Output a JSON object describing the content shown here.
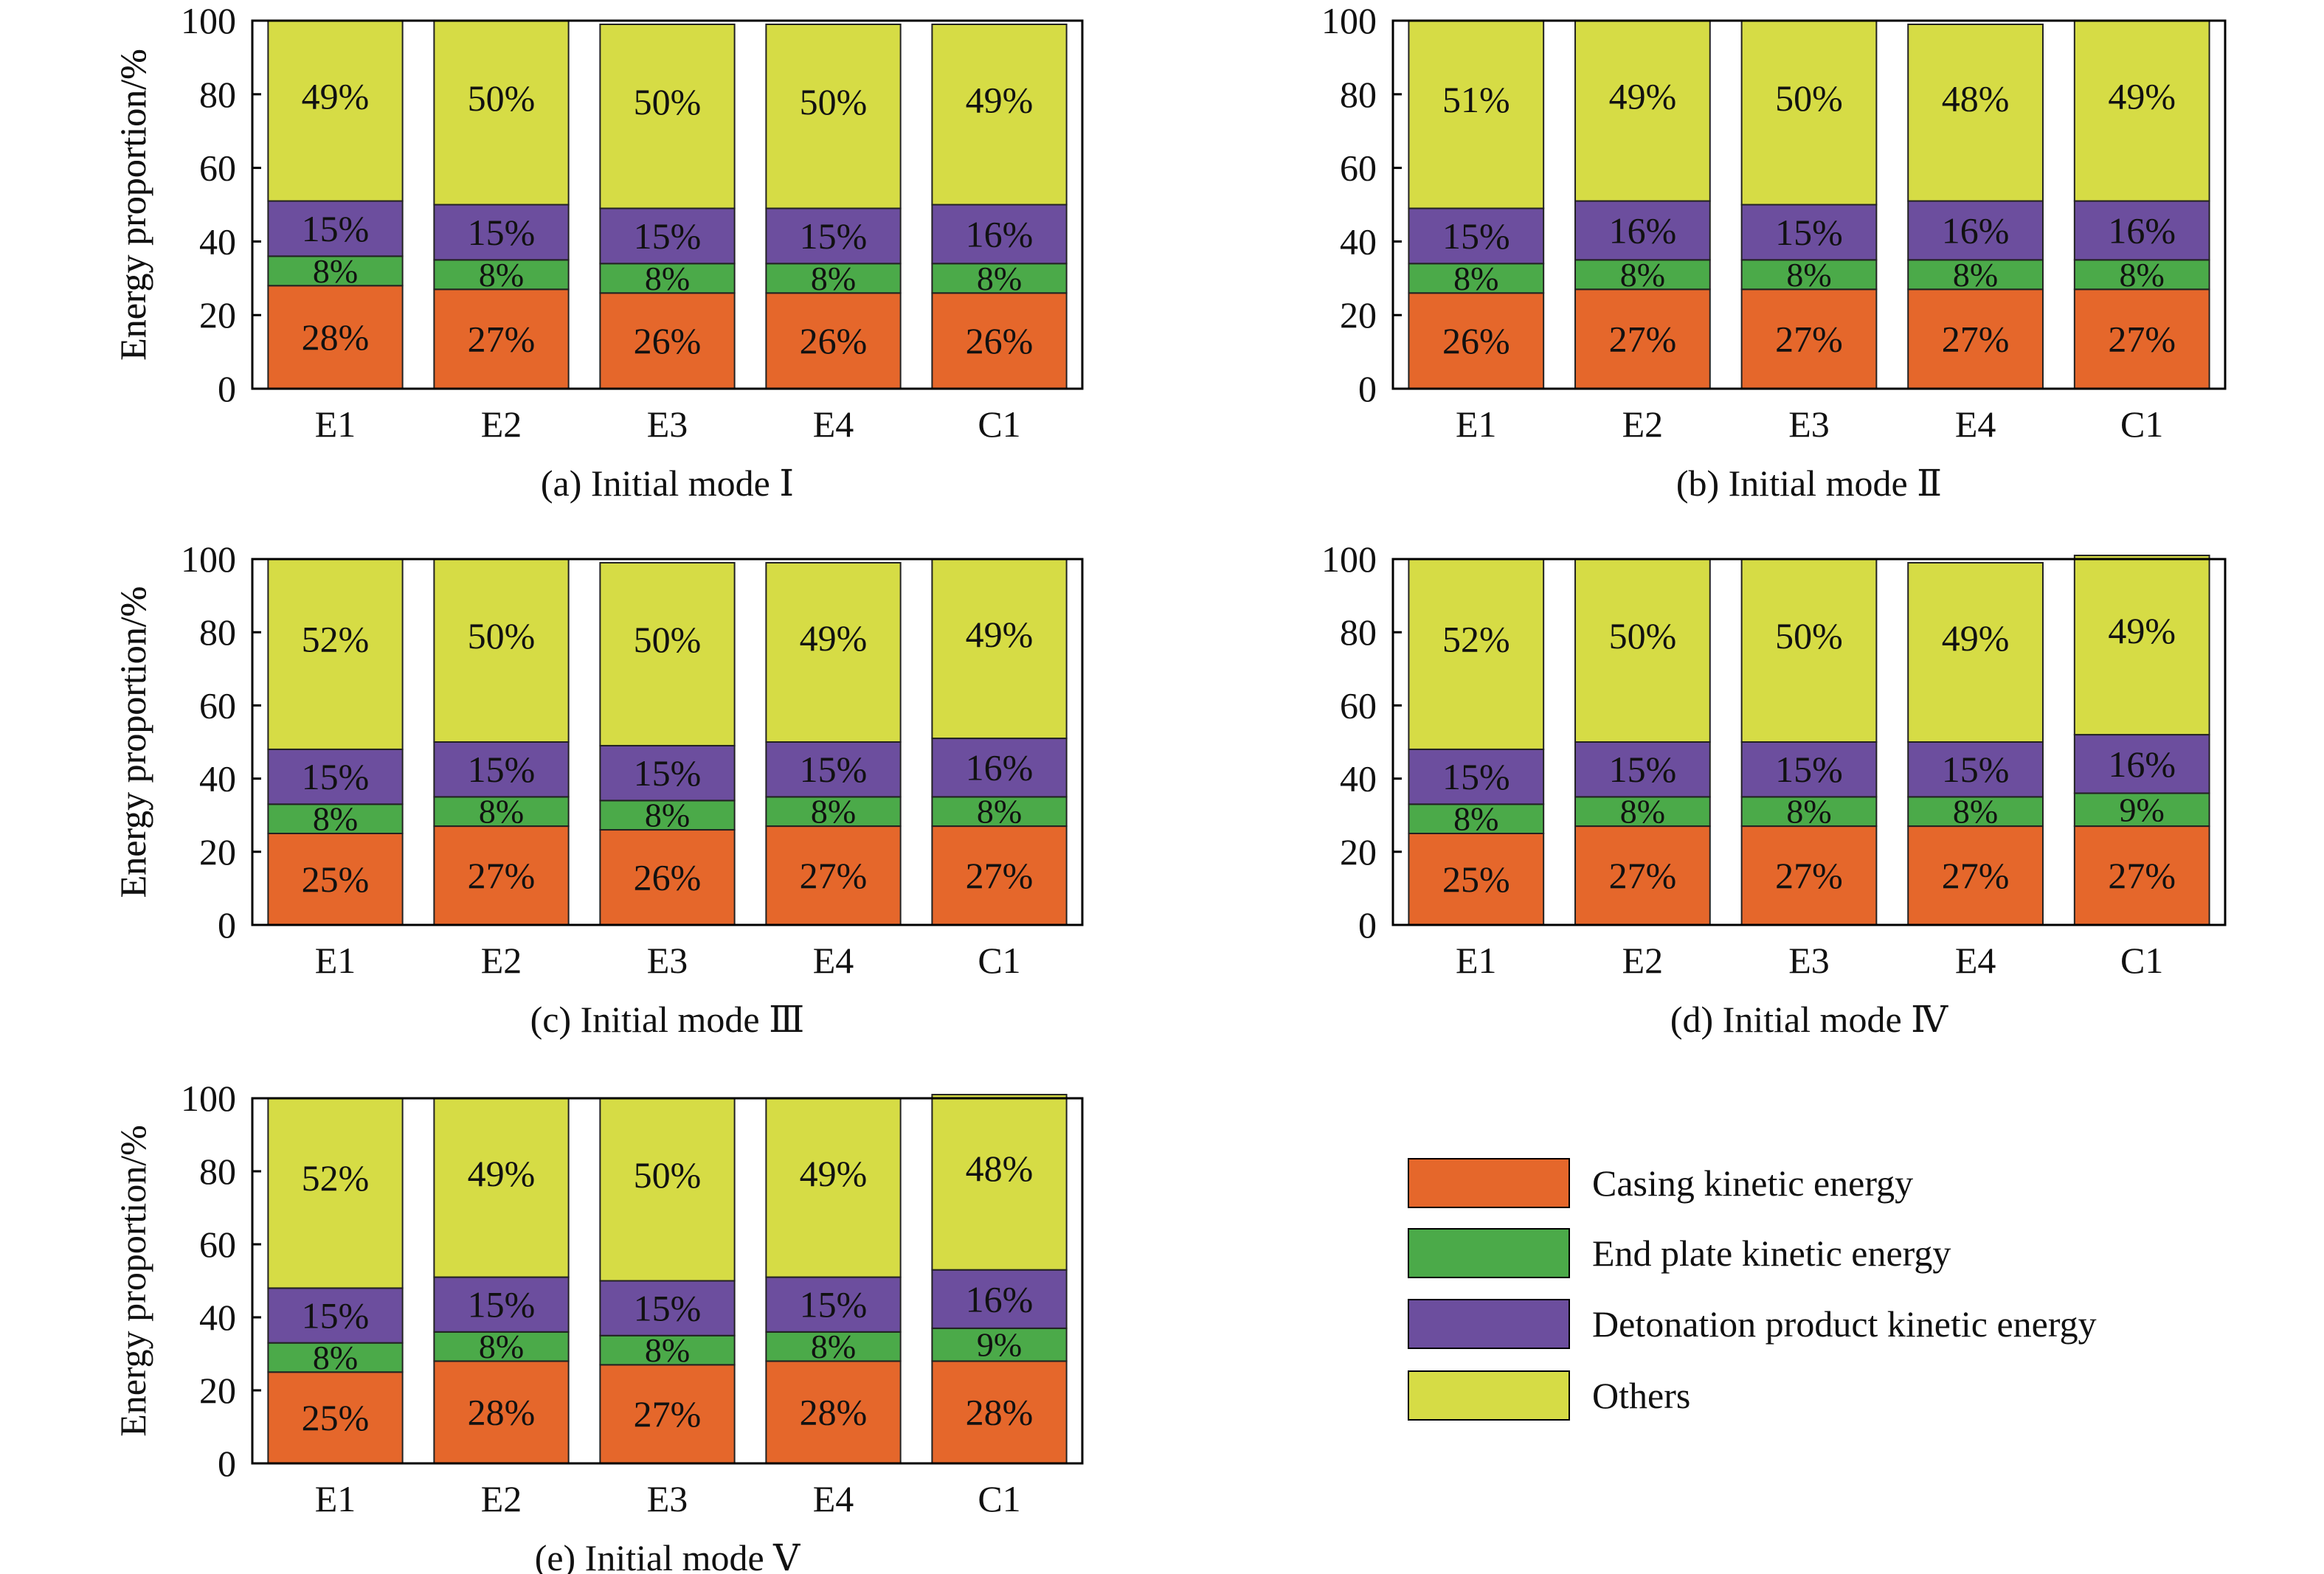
{
  "colors": {
    "casing": "#E5672B",
    "end_plate": "#4BAA49",
    "detonation": "#6C4E9E",
    "others": "#D6DC45"
  },
  "legend": {
    "items": [
      {
        "label": "Casing kinetic energy",
        "color_key": "casing"
      },
      {
        "label": "End plate kinetic energy",
        "color_key": "end_plate"
      },
      {
        "label": "Detonation product kinetic energy",
        "color_key": "detonation"
      },
      {
        "label": "Others",
        "color_key": "others"
      }
    ]
  },
  "chart_data": [
    {
      "type": "bar",
      "stacked": true,
      "caption": "(a) Initial mode Ⅰ",
      "ylabel": "Energy proportion/%",
      "ylim": [
        0,
        100
      ],
      "yticks": [
        "0",
        "20",
        "40",
        "60",
        "80",
        "100"
      ],
      "categories": [
        "E1",
        "E2",
        "E3",
        "E4",
        "C1"
      ],
      "series": [
        {
          "name": "Casing kinetic energy",
          "values": [
            28,
            27,
            26,
            26,
            26
          ],
          "labels": [
            "28%",
            "27%",
            "26%",
            "26%",
            "26%"
          ]
        },
        {
          "name": "End plate kinetic energy",
          "values": [
            8,
            8,
            8,
            8,
            8
          ],
          "labels": [
            "8%",
            "8%",
            "8%",
            "8%",
            "8%"
          ]
        },
        {
          "name": "Detonation product kinetic energy",
          "values": [
            15,
            15,
            15,
            15,
            16
          ],
          "labels": [
            "15%",
            "15%",
            "15%",
            "15%",
            "16%"
          ]
        },
        {
          "name": "Others",
          "values": [
            49,
            50,
            50,
            50,
            49
          ],
          "labels": [
            "49%",
            "50%",
            "50%",
            "50%",
            "49%"
          ]
        }
      ]
    },
    {
      "type": "bar",
      "stacked": true,
      "caption": "(b) Initial mode Ⅱ",
      "ylabel": "Energy proportion/%",
      "ylim": [
        0,
        100
      ],
      "yticks": [
        "0",
        "20",
        "40",
        "60",
        "80",
        "100"
      ],
      "categories": [
        "E1",
        "E2",
        "E3",
        "E4",
        "C1"
      ],
      "series": [
        {
          "name": "Casing kinetic energy",
          "values": [
            26,
            27,
            27,
            27,
            27
          ],
          "labels": [
            "26%",
            "27%",
            "27%",
            "27%",
            "27%"
          ]
        },
        {
          "name": "End plate kinetic energy",
          "values": [
            8,
            8,
            8,
            8,
            8
          ],
          "labels": [
            "8%",
            "8%",
            "8%",
            "8%",
            "8%"
          ]
        },
        {
          "name": "Detonation product kinetic energy",
          "values": [
            15,
            16,
            15,
            16,
            16
          ],
          "labels": [
            "15%",
            "16%",
            "15%",
            "16%",
            "16%"
          ]
        },
        {
          "name": "Others",
          "values": [
            51,
            49,
            50,
            48,
            49
          ],
          "labels": [
            "51%",
            "49%",
            "50%",
            "48%",
            "49%"
          ]
        }
      ]
    },
    {
      "type": "bar",
      "stacked": true,
      "caption": "(c) Initial mode Ⅲ",
      "ylabel": "Energy proportion/%",
      "ylim": [
        0,
        100
      ],
      "yticks": [
        "0",
        "20",
        "40",
        "60",
        "80",
        "100"
      ],
      "categories": [
        "E1",
        "E2",
        "E3",
        "E4",
        "C1"
      ],
      "series": [
        {
          "name": "Casing kinetic energy",
          "values": [
            25,
            27,
            26,
            27,
            27
          ],
          "labels": [
            "25%",
            "27%",
            "26%",
            "27%",
            "27%"
          ]
        },
        {
          "name": "End plate kinetic energy",
          "values": [
            8,
            8,
            8,
            8,
            8
          ],
          "labels": [
            "8%",
            "8%",
            "8%",
            "8%",
            "8%"
          ]
        },
        {
          "name": "Detonation product kinetic energy",
          "values": [
            15,
            15,
            15,
            15,
            16
          ],
          "labels": [
            "15%",
            "15%",
            "15%",
            "15%",
            "16%"
          ]
        },
        {
          "name": "Others",
          "values": [
            52,
            50,
            50,
            49,
            49
          ],
          "labels": [
            "52%",
            "50%",
            "50%",
            "49%",
            "49%"
          ]
        }
      ]
    },
    {
      "type": "bar",
      "stacked": true,
      "caption": "(d) Initial mode Ⅳ",
      "ylabel": "Energy proportion/%",
      "ylim": [
        0,
        100
      ],
      "yticks": [
        "0",
        "20",
        "40",
        "60",
        "80",
        "100"
      ],
      "categories": [
        "E1",
        "E2",
        "E3",
        "E4",
        "C1"
      ],
      "series": [
        {
          "name": "Casing kinetic energy",
          "values": [
            25,
            27,
            27,
            27,
            27
          ],
          "labels": [
            "25%",
            "27%",
            "27%",
            "27%",
            "27%"
          ]
        },
        {
          "name": "End plate kinetic energy",
          "values": [
            8,
            8,
            8,
            8,
            9
          ],
          "labels": [
            "8%",
            "8%",
            "8%",
            "8%",
            "9%"
          ]
        },
        {
          "name": "Detonation product kinetic energy",
          "values": [
            15,
            15,
            15,
            15,
            16
          ],
          "labels": [
            "15%",
            "15%",
            "15%",
            "15%",
            "16%"
          ]
        },
        {
          "name": "Others",
          "values": [
            52,
            50,
            50,
            49,
            49
          ],
          "labels": [
            "52%",
            "50%",
            "50%",
            "49%",
            "49%"
          ]
        }
      ]
    },
    {
      "type": "bar",
      "stacked": true,
      "caption": "(e) Initial mode Ⅴ",
      "ylabel": "Energy proportion/%",
      "ylim": [
        0,
        100
      ],
      "yticks": [
        "0",
        "20",
        "40",
        "60",
        "80",
        "100"
      ],
      "categories": [
        "E1",
        "E2",
        "E3",
        "E4",
        "C1"
      ],
      "series": [
        {
          "name": "Casing kinetic energy",
          "values": [
            25,
            28,
            27,
            28,
            28
          ],
          "labels": [
            "25%",
            "28%",
            "27%",
            "28%",
            "28%"
          ]
        },
        {
          "name": "End plate kinetic energy",
          "values": [
            8,
            8,
            8,
            8,
            9
          ],
          "labels": [
            "8%",
            "8%",
            "8%",
            "8%",
            "9%"
          ]
        },
        {
          "name": "Detonation product kinetic energy",
          "values": [
            15,
            15,
            15,
            15,
            16
          ],
          "labels": [
            "15%",
            "15%",
            "15%",
            "15%",
            "16%"
          ]
        },
        {
          "name": "Others",
          "values": [
            52,
            49,
            50,
            49,
            48
          ],
          "labels": [
            "52%",
            "49%",
            "50%",
            "49%",
            "48%"
          ]
        }
      ]
    }
  ]
}
